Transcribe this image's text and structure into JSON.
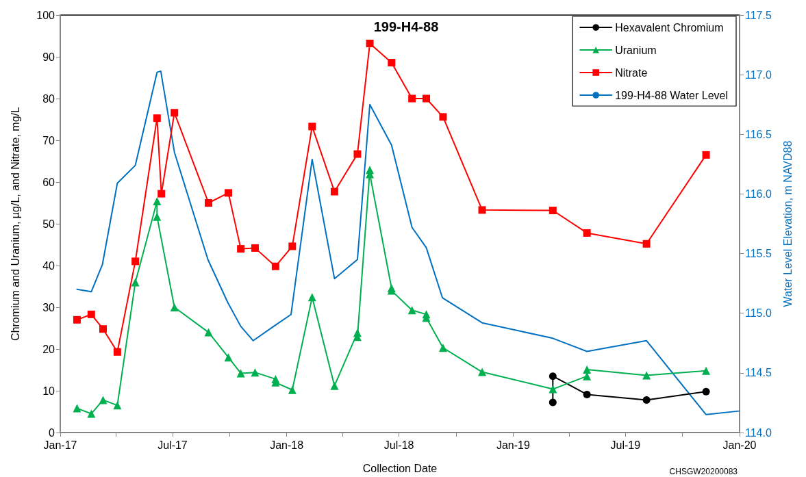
{
  "chart_data": {
    "type": "line",
    "title": "199-H4-88",
    "xlabel": "Collection Date",
    "ylabel": "Chromium and Uranium, µg/L, and Nitrate, mg/L",
    "y2label": "Water Level Elevation, m NAVD88",
    "annotations": [
      "CHSGW20200083"
    ],
    "xlim": [
      "2017-01-01",
      "2020-01-01"
    ],
    "xticks": [
      {
        "value": "2017-01-01",
        "label": "Jan-17"
      },
      {
        "value": "2017-04-01",
        "label": null
      },
      {
        "value": "2017-07-01",
        "label": "Jul-17"
      },
      {
        "value": "2017-10-01",
        "label": null
      },
      {
        "value": "2018-01-01",
        "label": "Jan-18"
      },
      {
        "value": "2018-04-01",
        "label": null
      },
      {
        "value": "2018-07-01",
        "label": "Jul-18"
      },
      {
        "value": "2018-10-01",
        "label": null
      },
      {
        "value": "2019-01-01",
        "label": "Jan-19"
      },
      {
        "value": "2019-04-01",
        "label": null
      },
      {
        "value": "2019-07-01",
        "label": "Jul-19"
      },
      {
        "value": "2019-10-01",
        "label": null
      },
      {
        "value": "2020-01-01",
        "label": "Jan-20"
      }
    ],
    "ylim": [
      0,
      100
    ],
    "yticks": [
      0,
      10,
      20,
      30,
      40,
      50,
      60,
      70,
      80,
      90,
      100
    ],
    "y2lim": [
      114,
      117.5
    ],
    "y2ticks": [
      {
        "value": 114,
        "label": "114.0"
      },
      {
        "value": 114.5,
        "label": "114.5"
      },
      {
        "value": 115,
        "label": "115.0"
      },
      {
        "value": 115.5,
        "label": "115.5"
      },
      {
        "value": 116,
        "label": "116.0"
      },
      {
        "value": 116.5,
        "label": "116.5"
      },
      {
        "value": 117,
        "label": "117.0"
      },
      {
        "value": 117.5,
        "label": "117.5"
      }
    ],
    "grid": false,
    "legend": "top right",
    "line_style": "solid",
    "series": [
      {
        "name": "Hexavalent Chromium",
        "color": "#000000",
        "marker": "circle",
        "x": [
          "2019-03-06",
          "2019-03-06",
          "2019-04-30",
          "2019-08-04",
          "2019-11-08"
        ],
        "values": [
          7.2,
          13.5,
          9.1,
          7.8,
          9.8
        ]
      },
      {
        "name": "Uranium",
        "color": "#00b050",
        "marker": "triangle",
        "x": [
          "2017-01-28",
          "2017-02-20",
          "2017-03-11",
          "2017-04-03",
          "2017-05-02",
          "2017-06-06",
          "2017-06-06",
          "2017-07-04",
          "2017-08-28",
          "2017-09-29",
          "2017-10-19",
          "2017-11-11",
          "2017-12-14",
          "2017-12-14",
          "2018-01-10",
          "2018-02-11",
          "2018-03-19",
          "2018-04-25",
          "2018-04-25",
          "2018-05-15",
          "2018-05-15",
          "2018-06-19",
          "2018-06-19",
          "2018-07-22",
          "2018-08-14",
          "2018-08-14",
          "2018-09-10",
          "2018-11-12",
          "2019-03-06",
          "2019-04-30",
          "2019-04-30",
          "2019-08-04",
          "2019-11-08"
        ],
        "values": [
          5.8,
          4.5,
          7.8,
          6.5,
          36,
          55.4,
          51.7,
          30,
          24,
          18,
          14.2,
          14.4,
          12.8,
          12,
          10.2,
          32.4,
          11.2,
          23.9,
          22.9,
          62.9,
          61.9,
          34.6,
          34,
          29.3,
          28.3,
          27.5,
          20.3,
          14.5,
          10.4,
          13.5,
          15.1,
          13.7,
          14.8
        ]
      },
      {
        "name": "Nitrate",
        "color": "#ff0000",
        "marker": "square",
        "x": [
          "2017-01-28",
          "2017-02-20",
          "2017-03-11",
          "2017-04-03",
          "2017-05-02",
          "2017-06-06",
          "2017-06-13",
          "2017-07-04",
          "2017-08-28",
          "2017-09-29",
          "2017-10-19",
          "2017-11-11",
          "2017-12-14",
          "2018-01-10",
          "2018-02-11",
          "2018-03-19",
          "2018-04-25",
          "2018-05-15",
          "2018-06-19",
          "2018-07-22",
          "2018-08-14",
          "2018-09-10",
          "2018-11-12",
          "2019-03-06",
          "2019-04-30",
          "2019-08-04",
          "2019-11-08"
        ],
        "values": [
          27,
          28.3,
          24.8,
          19.3,
          41,
          75.3,
          57.2,
          76.6,
          55,
          57.4,
          44,
          44.2,
          39.8,
          44.6,
          73.3,
          57.7,
          66.7,
          93.2,
          88.6,
          80,
          80,
          75.6,
          53.3,
          53.2,
          47.8,
          45.2,
          66.5
        ]
      },
      {
        "name": "199-H4-88 Water Level",
        "color": "#0070c0",
        "marker": "none",
        "axis": "y2",
        "x": [
          "2017-01-28",
          "2017-02-20",
          "2017-03-10",
          "2017-04-03",
          "2017-05-02",
          "2017-06-06",
          "2017-06-12",
          "2017-07-04",
          "2017-08-27",
          "2017-09-28",
          "2017-10-19",
          "2017-11-08",
          "2017-12-11",
          "2018-01-08",
          "2018-02-11",
          "2018-03-19",
          "2018-04-25",
          "2018-05-15",
          "2018-06-19",
          "2018-07-22",
          "2018-08-14",
          "2018-09-09",
          "2018-11-12",
          "2019-03-06",
          "2019-04-30",
          "2019-08-04",
          "2019-11-08",
          "2019-12-31"
        ],
        "values": [
          115.2,
          115.18,
          115.41,
          116.09,
          116.24,
          117.02,
          117.03,
          116.35,
          115.45,
          115.09,
          114.89,
          114.77,
          114.89,
          114.99,
          116.29,
          115.29,
          115.45,
          116.75,
          116.41,
          115.72,
          115.55,
          115.13,
          114.92,
          114.79,
          114.68,
          114.77,
          114.15,
          114.18
        ]
      }
    ]
  }
}
